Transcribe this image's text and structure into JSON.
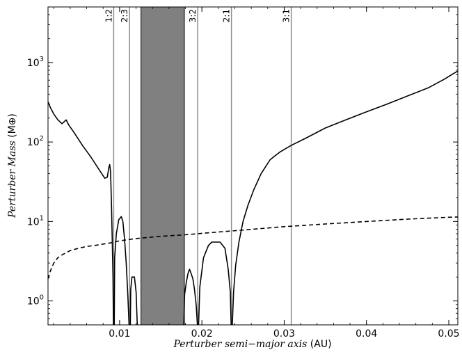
{
  "chart_data": {
    "type": "line",
    "title": "",
    "xlabel": {
      "italic": "Perturber semi−major axis",
      "unit": " (AU)"
    },
    "ylabel": {
      "italic": "Perturber Mass",
      "unit": " (M⊕)"
    },
    "xlim": [
      0.0013,
      0.0511
    ],
    "ylim": [
      0.5,
      5000
    ],
    "yscale": "log",
    "grid": false,
    "legend": "none",
    "xticks": [
      {
        "v": 0.01,
        "label": "0.01"
      },
      {
        "v": 0.02,
        "label": "0.02"
      },
      {
        "v": 0.03,
        "label": "0.03"
      },
      {
        "v": 0.04,
        "label": "0.04"
      },
      {
        "v": 0.05,
        "label": "0.05"
      }
    ],
    "yticks": [
      {
        "v": 1,
        "base": "10",
        "exp": "0"
      },
      {
        "v": 10,
        "base": "10",
        "exp": "1"
      },
      {
        "v": 100,
        "base": "10",
        "exp": "2"
      },
      {
        "v": 1000,
        "base": "10",
        "exp": "3"
      }
    ],
    "shaded_region": {
      "x": [
        0.0126,
        0.01787
      ],
      "color": "#808080"
    },
    "resonances": [
      {
        "label": "1:2",
        "x": 0.00928
      },
      {
        "label": "2:3",
        "x": 0.01121
      },
      {
        "label": "3:2",
        "x": 0.01949
      },
      {
        "label": "2:1",
        "x": 0.02359
      },
      {
        "label": "3:1",
        "x": 0.03086
      }
    ],
    "series": [
      {
        "style": "solid",
        "segments": [
          [
            [
              0.0013,
              320
            ],
            [
              0.0016,
              270
            ],
            [
              0.002,
              225
            ],
            [
              0.0025,
              190
            ],
            [
              0.003,
              170
            ],
            [
              0.0035,
              190
            ],
            [
              0.0038,
              165
            ],
            [
              0.0045,
              130
            ],
            [
              0.0055,
              90
            ],
            [
              0.0065,
              65
            ],
            [
              0.0075,
              45
            ],
            [
              0.0082,
              35
            ],
            [
              0.0085,
              36
            ],
            [
              0.0087,
              48
            ],
            [
              0.0088,
              52
            ],
            [
              0.0089,
              42
            ],
            [
              0.009,
              18
            ],
            [
              0.0091,
              6
            ],
            [
              0.0092,
              2
            ],
            [
              0.00925,
              0.5
            ]
          ],
          [
            [
              0.00935,
              0.5
            ],
            [
              0.0094,
              3.5
            ],
            [
              0.0096,
              7
            ],
            [
              0.0099,
              10.5
            ],
            [
              0.0102,
              11.5
            ],
            [
              0.0104,
              10
            ],
            [
              0.0106,
              6
            ],
            [
              0.0108,
              3
            ],
            [
              0.011,
              1.2
            ],
            [
              0.01115,
              0.5
            ]
          ],
          [
            [
              0.0113,
              0.5
            ],
            [
              0.01135,
              1.4
            ],
            [
              0.0115,
              2
            ],
            [
              0.0118,
              2
            ],
            [
              0.012,
              1.3
            ],
            [
              0.01215,
              0.5
            ]
          ],
          [
            [
              0.0178,
              0.5
            ],
            [
              0.0179,
              1.2
            ],
            [
              0.0181,
              1.7
            ],
            [
              0.0183,
              2.2
            ],
            [
              0.0185,
              2.5
            ],
            [
              0.0187,
              2.2
            ],
            [
              0.0189,
              1.9
            ],
            [
              0.0191,
              1.4
            ],
            [
              0.0193,
              0.9
            ],
            [
              0.01945,
              0.5
            ]
          ],
          [
            [
              0.0196,
              0.5
            ],
            [
              0.01975,
              1.5
            ],
            [
              0.0202,
              3.5
            ],
            [
              0.0208,
              5
            ],
            [
              0.0212,
              5.5
            ],
            [
              0.0222,
              5.5
            ],
            [
              0.0228,
              4.6
            ],
            [
              0.0232,
              2.5
            ],
            [
              0.02345,
              1.3
            ],
            [
              0.02355,
              0.5
            ]
          ],
          [
            [
              0.0237,
              0.5
            ],
            [
              0.02385,
              1.3
            ],
            [
              0.0241,
              2.8
            ],
            [
              0.0245,
              5.5
            ],
            [
              0.025,
              10
            ],
            [
              0.0256,
              16
            ],
            [
              0.0263,
              25
            ],
            [
              0.0272,
              40
            ],
            [
              0.0283,
              60
            ],
            [
              0.0295,
              75
            ],
            [
              0.0308,
              90
            ],
            [
              0.0325,
              110
            ],
            [
              0.035,
              150
            ],
            [
              0.0375,
              190
            ],
            [
              0.04,
              240
            ],
            [
              0.0425,
              300
            ],
            [
              0.045,
              380
            ],
            [
              0.0475,
              480
            ],
            [
              0.0495,
              620
            ],
            [
              0.0505,
              720
            ],
            [
              0.0511,
              780
            ]
          ]
        ]
      },
      {
        "style": "dashed",
        "segments": [
          [
            [
              0.0013,
              1.9
            ],
            [
              0.0016,
              2.4
            ],
            [
              0.002,
              3.0
            ],
            [
              0.0025,
              3.5
            ],
            [
              0.003,
              3.8
            ],
            [
              0.004,
              4.3
            ],
            [
              0.005,
              4.6
            ],
            [
              0.006,
              4.85
            ],
            [
              0.007,
              5.0
            ],
            [
              0.008,
              5.2
            ],
            [
              0.009,
              5.4
            ],
            [
              0.01,
              5.7
            ],
            [
              0.012,
              6.1
            ],
            [
              0.015,
              6.5
            ],
            [
              0.018,
              6.8
            ],
            [
              0.02,
              7.1
            ],
            [
              0.025,
              7.8
            ],
            [
              0.03,
              8.6
            ],
            [
              0.035,
              9.3
            ],
            [
              0.04,
              10.0
            ],
            [
              0.045,
              10.7
            ],
            [
              0.05,
              11.3
            ],
            [
              0.0511,
              11.4
            ]
          ]
        ]
      }
    ]
  }
}
